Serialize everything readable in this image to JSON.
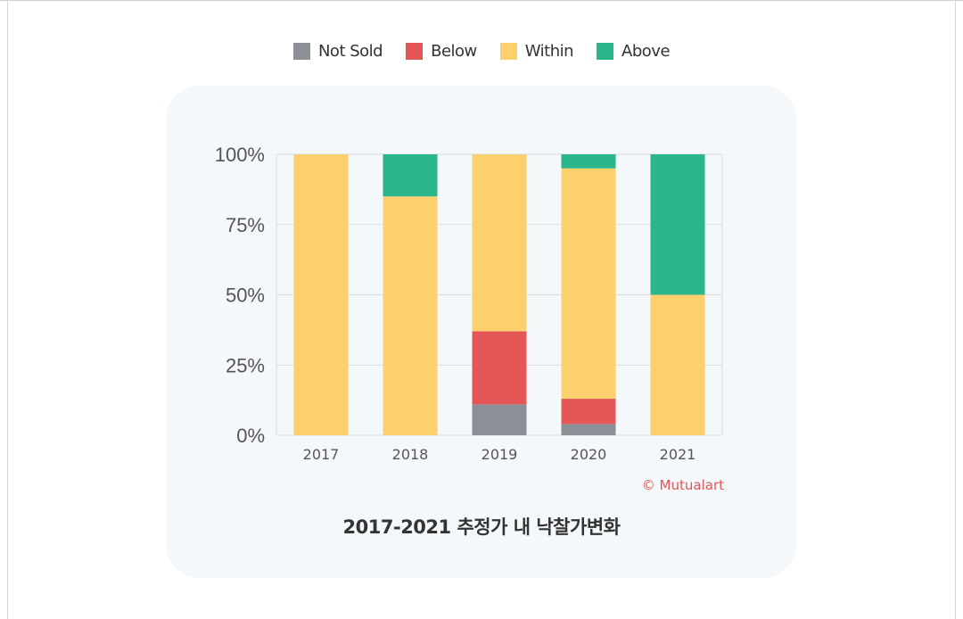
{
  "colors": {
    "not_sold": "#8a9096",
    "below": "#e55757",
    "within": "#fdd06e",
    "above": "#2bb58a",
    "grid": "#d9dde2",
    "card": "#f4f8fb"
  },
  "legend": [
    {
      "label": "Not Sold",
      "color": "#8a9096"
    },
    {
      "label": "Below",
      "color": "#e55757"
    },
    {
      "label": "Within",
      "color": "#fdd06e"
    },
    {
      "label": "Above",
      "color": "#2bb58a"
    }
  ],
  "credit": "© Mutualart",
  "chart_data": {
    "type": "bar",
    "stacked": true,
    "title": "2017-2021 추정가 내 낙찰가변화",
    "categories": [
      "2017",
      "2018",
      "2019",
      "2020",
      "2021"
    ],
    "series": [
      {
        "name": "Not Sold",
        "color": "#8a9096",
        "values": [
          0,
          0,
          11,
          4,
          0
        ]
      },
      {
        "name": "Below",
        "color": "#e55757",
        "values": [
          0,
          0,
          26,
          9,
          0
        ]
      },
      {
        "name": "Within",
        "color": "#fdd06e",
        "values": [
          100,
          85,
          63,
          82,
          50
        ]
      },
      {
        "name": "Above",
        "color": "#2bb58a",
        "values": [
          0,
          15,
          0,
          5,
          50
        ]
      }
    ],
    "ylim": [
      0,
      100
    ],
    "yticks": [
      "0%",
      "25%",
      "50%",
      "75%",
      "100%"
    ],
    "ytick_values": [
      0,
      25,
      50,
      75,
      100
    ],
    "grid": true,
    "legend_position": "top-center"
  }
}
